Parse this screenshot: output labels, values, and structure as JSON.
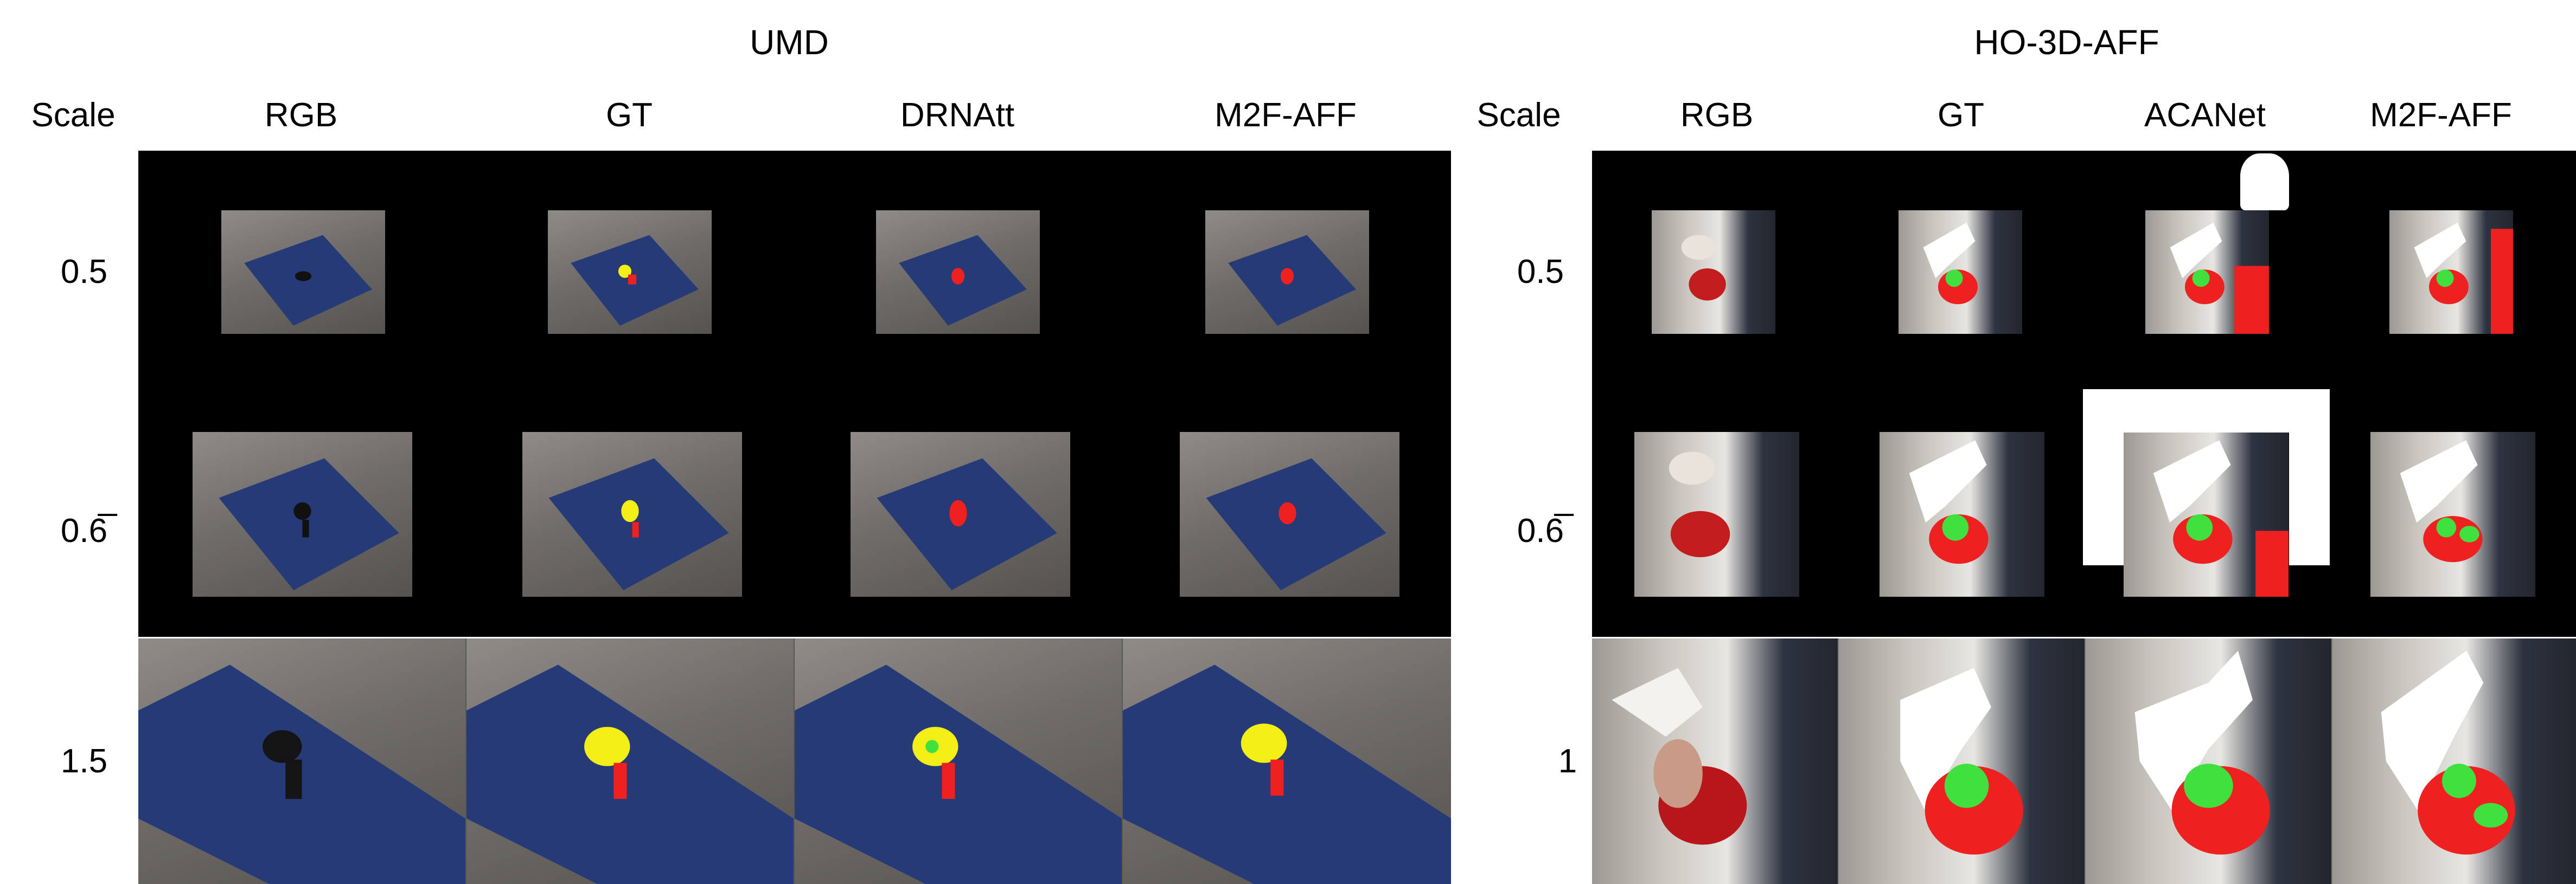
{
  "datasets": {
    "umd": {
      "title": "UMD",
      "scale_header": "Scale",
      "columns": [
        "RGB",
        "GT",
        "DRNAtt",
        "M2F-AFF"
      ],
      "scales": [
        "0.5",
        "0.6̅",
        "1.5"
      ]
    },
    "ho3d": {
      "title": "HO-3D-AFF",
      "scale_header": "Scale",
      "columns": [
        "RGB",
        "GT",
        "ACANet",
        "M2F-AFF"
      ],
      "scales": [
        "0.5",
        "0.6̅",
        "1"
      ]
    }
  },
  "colors": {
    "background": "#000000",
    "mask_yellow": "#f2ee16",
    "mask_red": "#ee2020",
    "mask_green": "#3fe13f",
    "mask_white": "#ffffff",
    "table_blue": "#263a78"
  }
}
